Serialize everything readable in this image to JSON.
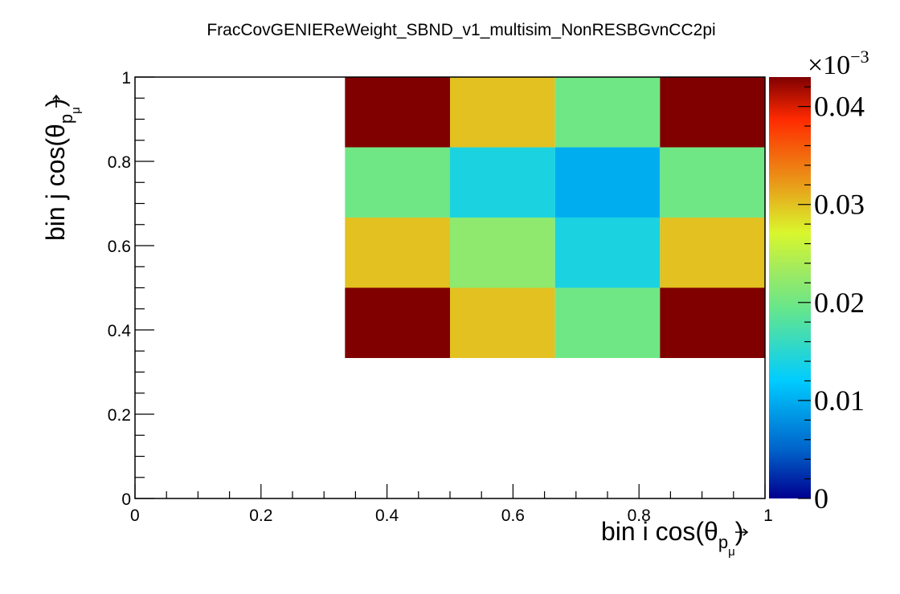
{
  "chart_data": {
    "type": "heatmap",
    "title": "FracCovGENIEReWeight_SBND_v1_multisim_NonRESBGvnCC2pi",
    "xlabel": {
      "prefix": "bin i cos(θ",
      "sub_p": "p",
      "sub_mu": "μ",
      "suffix": ")"
    },
    "ylabel": {
      "prefix": "bin j cos(θ",
      "sub_p": "p",
      "sub_mu": "μ",
      "suffix": ")"
    },
    "xlim": [
      0,
      1
    ],
    "ylim": [
      0,
      1
    ],
    "x_ticks": [
      0,
      0.2,
      0.4,
      0.6,
      0.8,
      1
    ],
    "x_tick_labels": [
      "0",
      "0.2",
      "0.4",
      "0.6",
      "0.8",
      "1"
    ],
    "y_ticks": [
      0,
      0.2,
      0.4,
      0.6,
      0.8,
      1
    ],
    "y_tick_labels": [
      "0",
      "0.2",
      "0.4",
      "0.6",
      "0.8",
      "1"
    ],
    "x_bin_edges": [
      0.3333,
      0.5,
      0.6667,
      0.8333,
      1.0
    ],
    "y_bin_edges": [
      0.3333,
      0.5,
      0.6667,
      0.8333,
      1.0
    ],
    "z_rows_bottom_to_top": [
      [
        4.3e-05,
        3e-05,
        2e-05,
        4.3e-05
      ],
      [
        3e-05,
        2.2e-05,
        1.4e-05,
        3e-05
      ],
      [
        2e-05,
        1.4e-05,
        1e-05,
        2e-05
      ],
      [
        4.3e-05,
        3e-05,
        2e-05,
        4.3e-05
      ]
    ],
    "colorbar": {
      "zlim": [
        0,
        4.3e-05
      ],
      "multiplier_base": "×10",
      "multiplier_exp": "−3",
      "ticks": [
        0,
        1e-05,
        2e-05,
        3e-05,
        4e-05
      ],
      "tick_labels": [
        "0",
        "0.01",
        "0.02",
        "0.03",
        "0.04"
      ]
    },
    "palette": [
      "#00008f",
      "#0066cc",
      "#00ccff",
      "#66e68c",
      "#a0ea60",
      "#d9f72d",
      "#e8a01a",
      "#ff2a00",
      "#800000"
    ]
  }
}
